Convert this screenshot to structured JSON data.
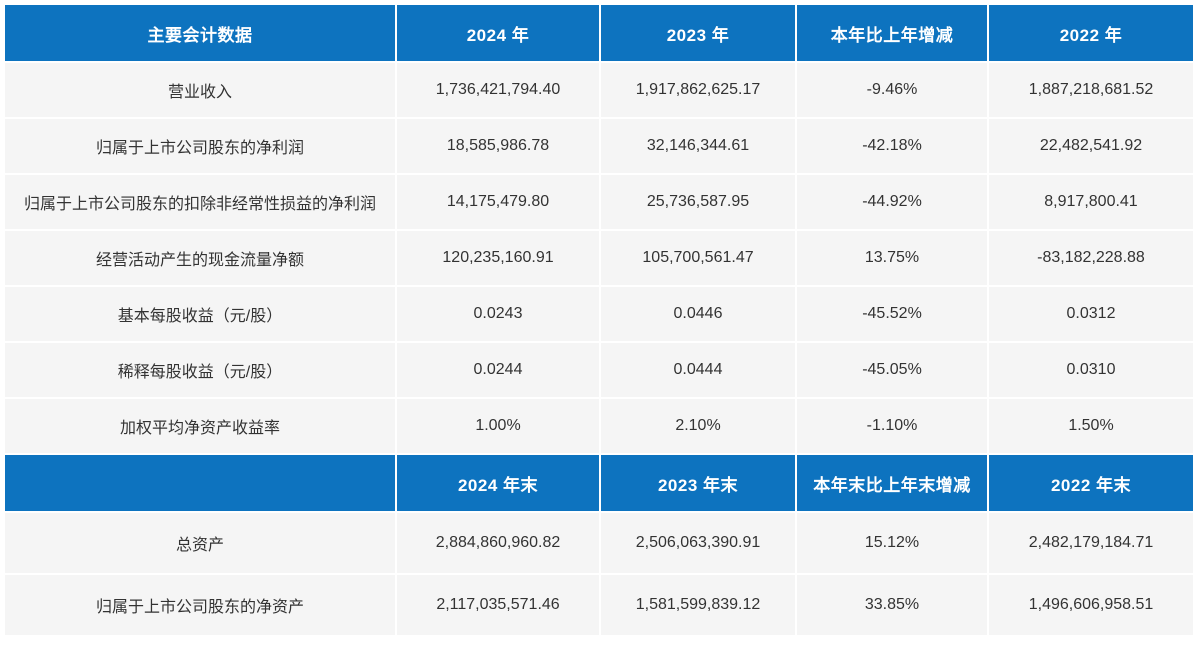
{
  "accent_color": "#0d73bf",
  "row_bg_color": "#f5f5f5",
  "annual_table": {
    "headers": {
      "label": "主要会计数据",
      "y2024": "2024 年",
      "y2023": "2023 年",
      "change": "本年比上年增减",
      "y2022": "2022 年"
    },
    "rows": [
      [
        "营业收入",
        "1,736,421,794.40",
        "1,917,862,625.17",
        "-9.46%",
        "1,887,218,681.52"
      ],
      [
        "归属于上市公司股东的净利润",
        "18,585,986.78",
        "32,146,344.61",
        "-42.18%",
        "22,482,541.92"
      ],
      [
        "归属于上市公司股东的扣除非经常性损益的净利润",
        "14,175,479.80",
        "25,736,587.95",
        "-44.92%",
        "8,917,800.41"
      ],
      [
        "经营活动产生的现金流量净额",
        "120,235,160.91",
        "105,700,561.47",
        "13.75%",
        "-83,182,228.88"
      ],
      [
        "基本每股收益（元/股）",
        "0.0243",
        "0.0446",
        "-45.52%",
        "0.0312"
      ],
      [
        "稀释每股收益（元/股）",
        "0.0244",
        "0.0444",
        "-45.05%",
        "0.0310"
      ],
      [
        "加权平均净资产收益率",
        "1.00%",
        "2.10%",
        "-1.10%",
        "1.50%"
      ]
    ]
  },
  "period_end_table": {
    "headers": {
      "label": "",
      "y2024": "2024 年末",
      "y2023": "2023 年末",
      "change": "本年末比上年末增减",
      "y2022": "2022 年末"
    },
    "rows": [
      [
        "总资产",
        "2,884,860,960.82",
        "2,506,063,390.91",
        "15.12%",
        "2,482,179,184.71"
      ],
      [
        "归属于上市公司股东的净资产",
        "2,117,035,571.46",
        "1,581,599,839.12",
        "33.85%",
        "1,496,606,958.51"
      ]
    ]
  }
}
